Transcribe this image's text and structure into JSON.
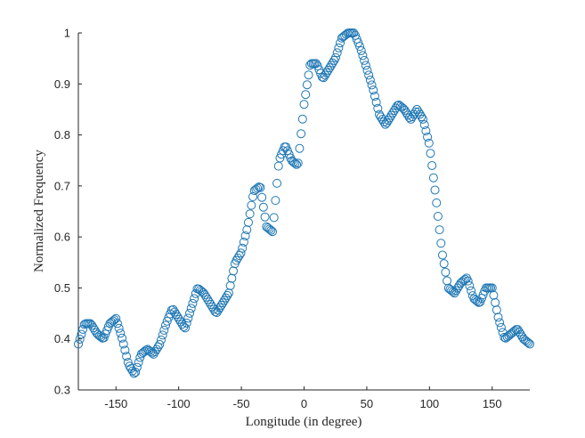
{
  "chart_data": {
    "type": "scatter",
    "title": "",
    "xlabel": "Longitude (in degree)",
    "ylabel": "Normalized Frequency",
    "xlim": [
      -180,
      180
    ],
    "ylim": [
      0.3,
      1.0
    ],
    "xticks": [
      -150,
      -100,
      -50,
      0,
      50,
      100,
      150
    ],
    "yticks": [
      0.3,
      0.4,
      0.5,
      0.6,
      0.7,
      0.8,
      0.9,
      1.0
    ],
    "xtick_labels": [
      "-150",
      "-100",
      "-50",
      "0",
      "50",
      "100",
      "150"
    ],
    "ytick_labels": [
      "0.3",
      "0.4",
      "0.5",
      "0.6",
      "0.7",
      "0.8",
      "0.9",
      "1"
    ],
    "grid": false,
    "legend": "none",
    "marker": "open-circle",
    "color": "#1f77b4",
    "x": [
      -180,
      -175,
      -170,
      -165,
      -160,
      -155,
      -150,
      -145,
      -140,
      -135,
      -130,
      -125,
      -120,
      -115,
      -110,
      -105,
      -100,
      -95,
      -90,
      -85,
      -80,
      -75,
      -70,
      -65,
      -60,
      -55,
      -50,
      -45,
      -40,
      -35,
      -30,
      -25,
      -20,
      -15,
      -10,
      -5,
      0,
      5,
      10,
      15,
      20,
      25,
      30,
      35,
      40,
      45,
      50,
      55,
      60,
      65,
      70,
      75,
      80,
      85,
      90,
      95,
      100,
      105,
      110,
      115,
      120,
      125,
      130,
      135,
      140,
      145,
      150,
      155,
      160,
      165,
      170,
      175,
      180
    ],
    "y": [
      0.39,
      0.43,
      0.43,
      0.41,
      0.4,
      0.43,
      0.44,
      0.4,
      0.35,
      0.33,
      0.37,
      0.38,
      0.37,
      0.39,
      0.43,
      0.46,
      0.44,
      0.42,
      0.46,
      0.5,
      0.49,
      0.47,
      0.45,
      0.47,
      0.49,
      0.55,
      0.57,
      0.62,
      0.69,
      0.7,
      0.62,
      0.61,
      0.75,
      0.78,
      0.75,
      0.74,
      0.86,
      0.94,
      0.94,
      0.91,
      0.93,
      0.95,
      0.99,
      1.0,
      1.0,
      0.97,
      0.93,
      0.89,
      0.84,
      0.82,
      0.84,
      0.86,
      0.85,
      0.83,
      0.85,
      0.83,
      0.78,
      0.68,
      0.57,
      0.5,
      0.49,
      0.51,
      0.52,
      0.48,
      0.47,
      0.5,
      0.5,
      0.44,
      0.4,
      0.41,
      0.42,
      0.4,
      0.39
    ]
  }
}
